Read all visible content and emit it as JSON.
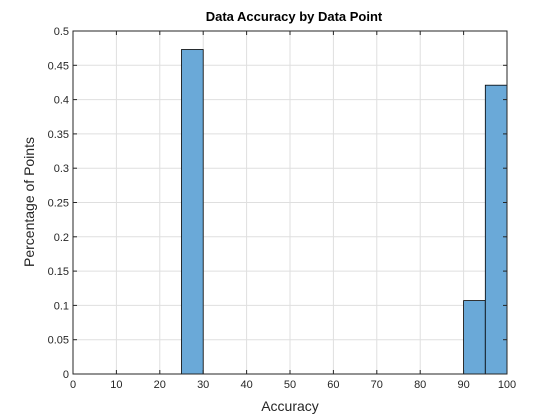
{
  "chart_data": {
    "type": "bar",
    "title": "Data Accuracy by Data Point",
    "xlabel": "Accuracy",
    "ylabel": "Percentage of Points",
    "xlim": [
      0,
      100
    ],
    "ylim": [
      0,
      0.5
    ],
    "xticks": [
      "0",
      "10",
      "20",
      "30",
      "40",
      "50",
      "60",
      "70",
      "80",
      "90",
      "100"
    ],
    "yticks": [
      "0",
      "0.05",
      "0.1",
      "0.15",
      "0.2",
      "0.25",
      "0.3",
      "0.35",
      "0.4",
      "0.45",
      "0.5"
    ],
    "grid": true,
    "bar_color": "#6aa9d8",
    "bar_edge_color": "#000000",
    "bins": [
      {
        "x0": 25,
        "x1": 30,
        "value": 0.473
      },
      {
        "x0": 90,
        "x1": 95,
        "value": 0.107
      },
      {
        "x0": 95,
        "x1": 100,
        "value": 0.421
      }
    ]
  }
}
